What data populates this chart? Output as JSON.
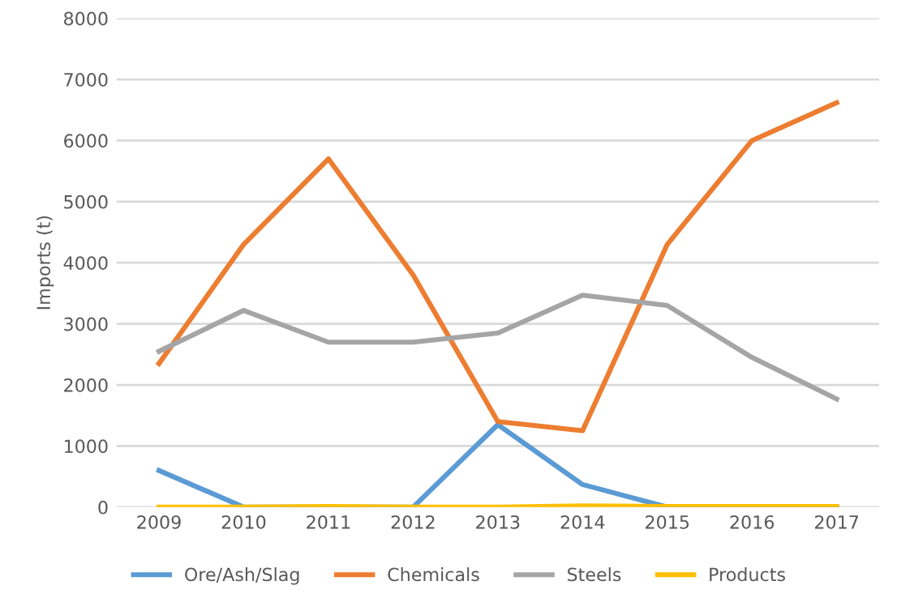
{
  "chart_data": {
    "type": "line",
    "ylabel": "Imports (t)",
    "categories": [
      "2009",
      "2010",
      "2011",
      "2012",
      "2013",
      "2014",
      "2015",
      "2016",
      "2017"
    ],
    "series": [
      {
        "name": "Ore/Ash/Slag",
        "color": "#5b9bd5",
        "values": [
          600,
          0,
          0,
          0,
          1350,
          370,
          0,
          0,
          0
        ]
      },
      {
        "name": "Chemicals",
        "color": "#ed7d31",
        "values": [
          2350,
          4300,
          5700,
          3800,
          1400,
          1250,
          4300,
          6000,
          6620
        ]
      },
      {
        "name": "Steels",
        "color": "#a5a5a5",
        "values": [
          2550,
          3220,
          2700,
          2700,
          2850,
          3470,
          3300,
          2450,
          1770
        ]
      },
      {
        "name": "Products",
        "color": "#ffc000",
        "values": [
          0,
          0,
          10,
          0,
          0,
          20,
          10,
          10,
          10
        ]
      }
    ],
    "ylim": [
      0,
      8000
    ],
    "yticks": [
      0,
      1000,
      2000,
      3000,
      4000,
      5000,
      6000,
      7000,
      8000
    ],
    "grid": "y",
    "legend": "bottom",
    "marker": "none",
    "line_style": "solid"
  }
}
